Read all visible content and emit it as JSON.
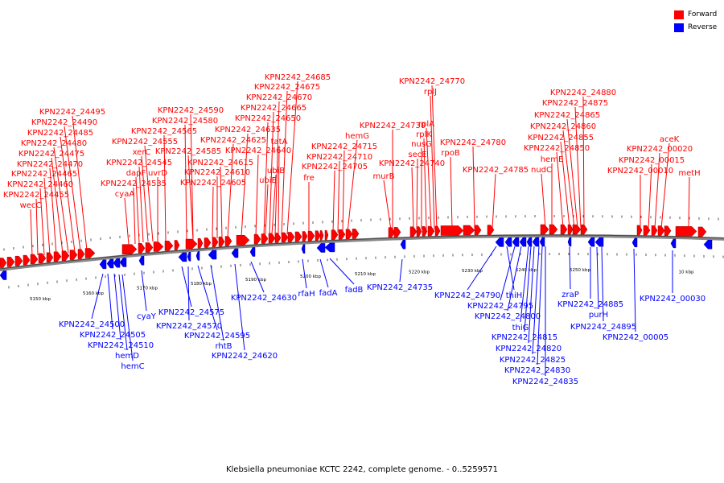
{
  "legend": {
    "forward_label": "Forward",
    "reverse_label": "Reverse",
    "forward_color": "#ff0000",
    "reverse_color": "#0000ff"
  },
  "caption": "Klebsiella pneumoniae KCTC 2242, complete genome. - 0..5259571",
  "scale_labels": [
    "5150 kbp",
    "5160 kbp",
    "5170 kbp",
    "5180 kbp",
    "5190 kbp",
    "5200 kbp",
    "5210 kbp",
    "5220 kbp",
    "5230 kbp",
    "5240 kbp",
    "5250 kbp",
    "10 kbp"
  ],
  "forward_labels": [
    "wecC",
    "KPN2242_24455",
    "KPN2242_24460",
    "KPN2242_24465",
    "KPN2242_24470",
    "KPN2242_24475",
    "KPN2242_24480",
    "KPN2242_24485",
    "KPN2242_24490",
    "KPN2242_24495",
    "cyaA",
    "KPN2242_24535",
    "dapF",
    "KPN2242_24545",
    "xerC",
    "uvrD",
    "KPN2242_24555",
    "KPN2242_24565",
    "KPN2242_24580",
    "KPN2242_24590",
    "KPN2242_24585",
    "KPN2242_24605",
    "KPN2242_24610",
    "KPN2242_24615",
    "KPN2242_24625",
    "KPN2242_24635",
    "KPN2242_24640",
    "KPN2242_24650",
    "KPN2242_24665",
    "KPN2242_24670",
    "KPN2242_24675",
    "KPN2242_24685",
    "ubiE",
    "ubiB",
    "tatA",
    "fre",
    "KPN2242_24705",
    "KPN2242_24710",
    "KPN2242_24715",
    "hemG",
    "KPN2242_24730",
    "murB",
    "KPN2242_24740",
    "secE",
    "nusG",
    "rplK",
    "rplA",
    "rplJ",
    "KPN2242_24770",
    "rpoB",
    "KPN2242_24780",
    "KPN2242_24785",
    "nudC",
    "hemE",
    "KPN2242_24850",
    "KPN2242_24855",
    "KPN2242_24860",
    "KPN2242_24865",
    "KPN2242_24875",
    "KPN2242_24880",
    "KPN2242_00010",
    "KPN2242_00015",
    "KPN2242_00020",
    "aceK",
    "metH"
  ],
  "reverse_labels": [
    "KPN2242_24500",
    "KPN2242_24505",
    "KPN2242_24510",
    "hemD",
    "hemC",
    "cyaY",
    "KPN2242_24575",
    "KPN2242_24570",
    "KPN2242_24595",
    "rhtB",
    "KPN2242_24620",
    "KPN2242_24630",
    "rfaH",
    "fadA",
    "fadB",
    "KPN2242_24735",
    "KPN2242_24790",
    "thiH",
    "KPN2242_24795",
    "KPN2242_24800",
    "thiG",
    "KPN2242_24815",
    "KPN2242_24820",
    "KPN2242_24825",
    "KPN2242_24830",
    "KPN2242_24835",
    "zraP",
    "KPN2242_24885",
    "purH",
    "KPN2242_24895",
    "KPN2242_00005",
    "KPN2242_00030"
  ]
}
